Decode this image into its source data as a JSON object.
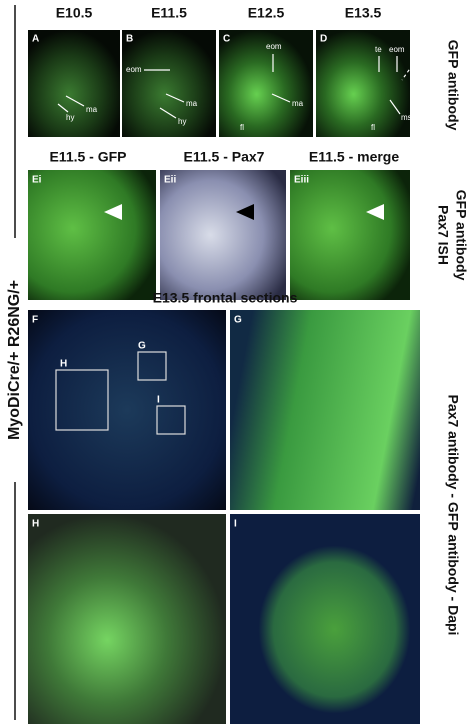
{
  "figure": {
    "side_label": "MyoDiCre/+ R26NG/+",
    "row1": {
      "stages": [
        "E10.5",
        "E11.5",
        "E12.5",
        "E13.5"
      ],
      "panels": [
        {
          "letter": "A",
          "labels": [
            "hy",
            "ma"
          ]
        },
        {
          "letter": "B",
          "labels": [
            "eom",
            "ma",
            "hy"
          ]
        },
        {
          "letter": "C",
          "labels": [
            "eom",
            "ma",
            "fl"
          ]
        },
        {
          "letter": "D",
          "labels": [
            "te",
            "eom",
            "fl",
            "ms"
          ]
        }
      ],
      "side_label": "GFP antibody"
    },
    "row2": {
      "titles": [
        "E11.5 - GFP",
        "E11.5 - Pax7",
        "E11.5 - merge"
      ],
      "panels": [
        "Ei",
        "Eii",
        "Eiii"
      ],
      "side_label": [
        "Pax7 ISH",
        "GFP antibody"
      ]
    },
    "sections": {
      "title": "E13.5 frontal sections",
      "panels": [
        "F",
        "G",
        "H",
        "I"
      ],
      "boxes": [
        "H",
        "G",
        "I"
      ],
      "side_label": "Pax7 antibody - GFP antibody - Dapi"
    }
  }
}
